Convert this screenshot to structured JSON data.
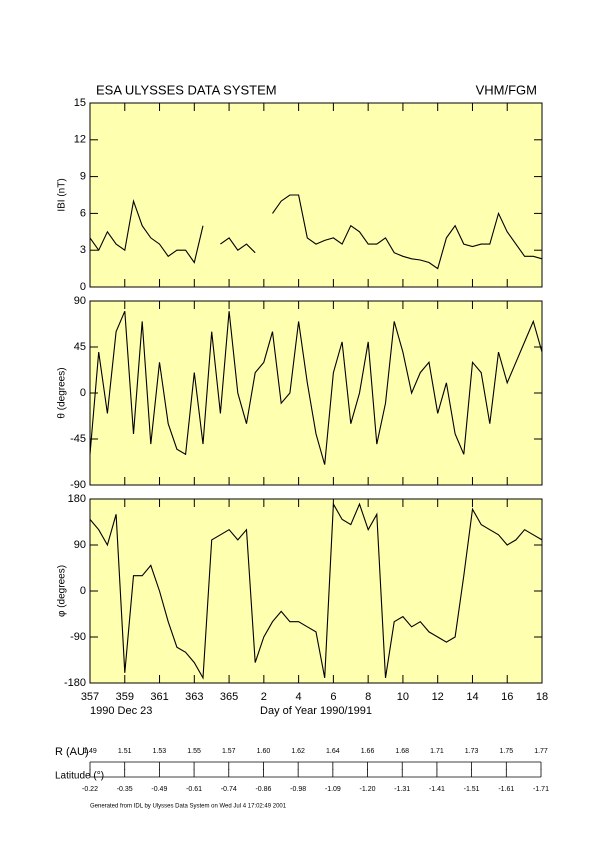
{
  "header": {
    "title": "ESA ULYSSES DATA SYSTEM",
    "instrument": "VHM/FGM"
  },
  "chart_data": [
    {
      "type": "line",
      "ylabel": "IBI (nT)",
      "ylim": [
        0,
        15
      ],
      "yticks": [
        0,
        3,
        6,
        9,
        12,
        15
      ],
      "xlim": [
        357,
        383
      ],
      "xticks": [
        357,
        359,
        361,
        363,
        365,
        {
          "value": 367,
          "label": "2"
        },
        {
          "value": 369,
          "label": "4"
        },
        {
          "value": 371,
          "label": "6"
        },
        {
          "value": 373,
          "label": "8"
        },
        {
          "value": 375,
          "label": "10"
        },
        {
          "value": 377,
          "label": "12"
        },
        {
          "value": 379,
          "label": "14"
        },
        {
          "value": 381,
          "label": "16"
        },
        {
          "value": 383,
          "label": "18"
        }
      ],
      "x": [
        357,
        357.5,
        358,
        358.5,
        359,
        359.5,
        360,
        360.5,
        361,
        361.5,
        362,
        362.5,
        363,
        363.5,
        364,
        364.5,
        365,
        365.5,
        366,
        366.5,
        367,
        367.5,
        368,
        368.5,
        369,
        369.5,
        370,
        370.5,
        371,
        371.5,
        372,
        372.5,
        373,
        373.5,
        374,
        374.5,
        375,
        375.5,
        376,
        376.5,
        377,
        377.5,
        378,
        378.5,
        379,
        379.5,
        380,
        380.5,
        381,
        381.5,
        382,
        382.5,
        383
      ],
      "series": [
        {
          "color": "#000000",
          "values": [
            4,
            3,
            4.5,
            3.5,
            3,
            7,
            5,
            4,
            3.5,
            2.5,
            3,
            3,
            2,
            5,
            null,
            3.5,
            4,
            3,
            3.5,
            2.8,
            null,
            6,
            7,
            7.5,
            7.5,
            4,
            3.5,
            3.8,
            4,
            3.5,
            5,
            4.5,
            3.5,
            3.5,
            4,
            2.8,
            2.5,
            2.3,
            2.2,
            2,
            1.5,
            4,
            5,
            3.5,
            3.3,
            3.5,
            3.5,
            6,
            4.5,
            3.5,
            2.5,
            2.5,
            2.3
          ]
        }
      ]
    },
    {
      "type": "line",
      "ylabel": "θ (degrees)",
      "ylim": [
        -90,
        90
      ],
      "yticks": [
        -90,
        -45,
        0,
        45,
        90
      ],
      "xlim": [
        357,
        383
      ],
      "xticks": [
        357,
        359,
        361,
        363,
        365,
        {
          "value": 367,
          "label": "2"
        },
        {
          "value": 369,
          "label": "4"
        },
        {
          "value": 371,
          "label": "6"
        },
        {
          "value": 373,
          "label": "8"
        },
        {
          "value": 375,
          "label": "10"
        },
        {
          "value": 377,
          "label": "12"
        },
        {
          "value": 379,
          "label": "14"
        },
        {
          "value": 381,
          "label": "16"
        },
        {
          "value": 383,
          "label": "18"
        }
      ],
      "x": [
        357,
        357.5,
        358,
        358.5,
        359,
        359.5,
        360,
        360.5,
        361,
        361.5,
        362,
        362.5,
        363,
        363.5,
        364,
        364.5,
        365,
        365.5,
        366,
        366.5,
        367,
        367.5,
        368,
        368.5,
        369,
        369.5,
        370,
        370.5,
        371,
        371.5,
        372,
        372.5,
        373,
        373.5,
        374,
        374.5,
        375,
        375.5,
        376,
        376.5,
        377,
        377.5,
        378,
        378.5,
        379,
        379.5,
        380,
        380.5,
        381,
        381.5,
        382,
        382.5,
        383
      ],
      "series": [
        {
          "color": "#000000",
          "values": [
            -60,
            40,
            -20,
            60,
            80,
            -40,
            70,
            -50,
            30,
            -30,
            -55,
            -60,
            20,
            -50,
            60,
            -20,
            80,
            0,
            -30,
            20,
            30,
            60,
            -10,
            0,
            70,
            10,
            -40,
            -70,
            20,
            50,
            -30,
            0,
            50,
            -50,
            -10,
            70,
            40,
            0,
            20,
            30,
            -20,
            10,
            -40,
            -60,
            30,
            20,
            -30,
            40,
            10,
            30,
            50,
            70,
            40
          ]
        }
      ]
    },
    {
      "type": "line",
      "ylabel": "φ (degrees)",
      "ylim": [
        -180,
        180
      ],
      "yticks": [
        -180,
        -90,
        0,
        90,
        180
      ],
      "xlim": [
        357,
        383
      ],
      "xticks": [
        357,
        359,
        361,
        363,
        365,
        {
          "value": 367,
          "label": "2"
        },
        {
          "value": 369,
          "label": "4"
        },
        {
          "value": 371,
          "label": "6"
        },
        {
          "value": 373,
          "label": "8"
        },
        {
          "value": 375,
          "label": "10"
        },
        {
          "value": 377,
          "label": "12"
        },
        {
          "value": 379,
          "label": "14"
        },
        {
          "value": 381,
          "label": "16"
        },
        {
          "value": 383,
          "label": "18"
        }
      ],
      "x": [
        357,
        357.5,
        358,
        358.5,
        359,
        359.5,
        360,
        360.5,
        361,
        361.5,
        362,
        362.5,
        363,
        363.5,
        364,
        364.5,
        365,
        365.5,
        366,
        366.5,
        367,
        367.5,
        368,
        368.5,
        369,
        369.5,
        370,
        370.5,
        371,
        371.5,
        372,
        372.5,
        373,
        373.5,
        374,
        374.5,
        375,
        375.5,
        376,
        376.5,
        377,
        377.5,
        378,
        378.5,
        379,
        379.5,
        380,
        380.5,
        381,
        381.5,
        382,
        382.5,
        383
      ],
      "series": [
        {
          "color": "#000000",
          "values": [
            140,
            120,
            90,
            150,
            -160,
            30,
            30,
            50,
            0,
            -60,
            -110,
            -120,
            -140,
            -170,
            100,
            110,
            120,
            100,
            120,
            -140,
            -90,
            -60,
            -40,
            -60,
            -60,
            -70,
            -80,
            -170,
            170,
            140,
            130,
            170,
            120,
            150,
            -170,
            -60,
            -50,
            -70,
            -60,
            -80,
            -90,
            -100,
            -90,
            30,
            160,
            130,
            120,
            110,
            90,
            100,
            120,
            110,
            100
          ]
        }
      ],
      "start_label": "1990 Dec 23",
      "xlabel": "Day of Year 1990/1991"
    }
  ],
  "orbit": {
    "r_label": "R (AU)",
    "r_values": [
      "1.49",
      "1.51",
      "1.53",
      "1.55",
      "1.57",
      "1.60",
      "1.62",
      "1.64",
      "1.66",
      "1.68",
      "1.71",
      "1.73",
      "1.75",
      "1.77"
    ],
    "lat_label": "Latitude (°)",
    "lat_values": [
      "-0.22",
      "-0.35",
      "-0.49",
      "-0.61",
      "-0.74",
      "-0.86",
      "-0.98",
      "-1.09",
      "-1.20",
      "-1.31",
      "-1.41",
      "-1.51",
      "-1.61",
      "-1.71"
    ]
  },
  "footer": "Generated from IDL by Ulysses Data System on Wed Jul 4 17:02:49 2001"
}
